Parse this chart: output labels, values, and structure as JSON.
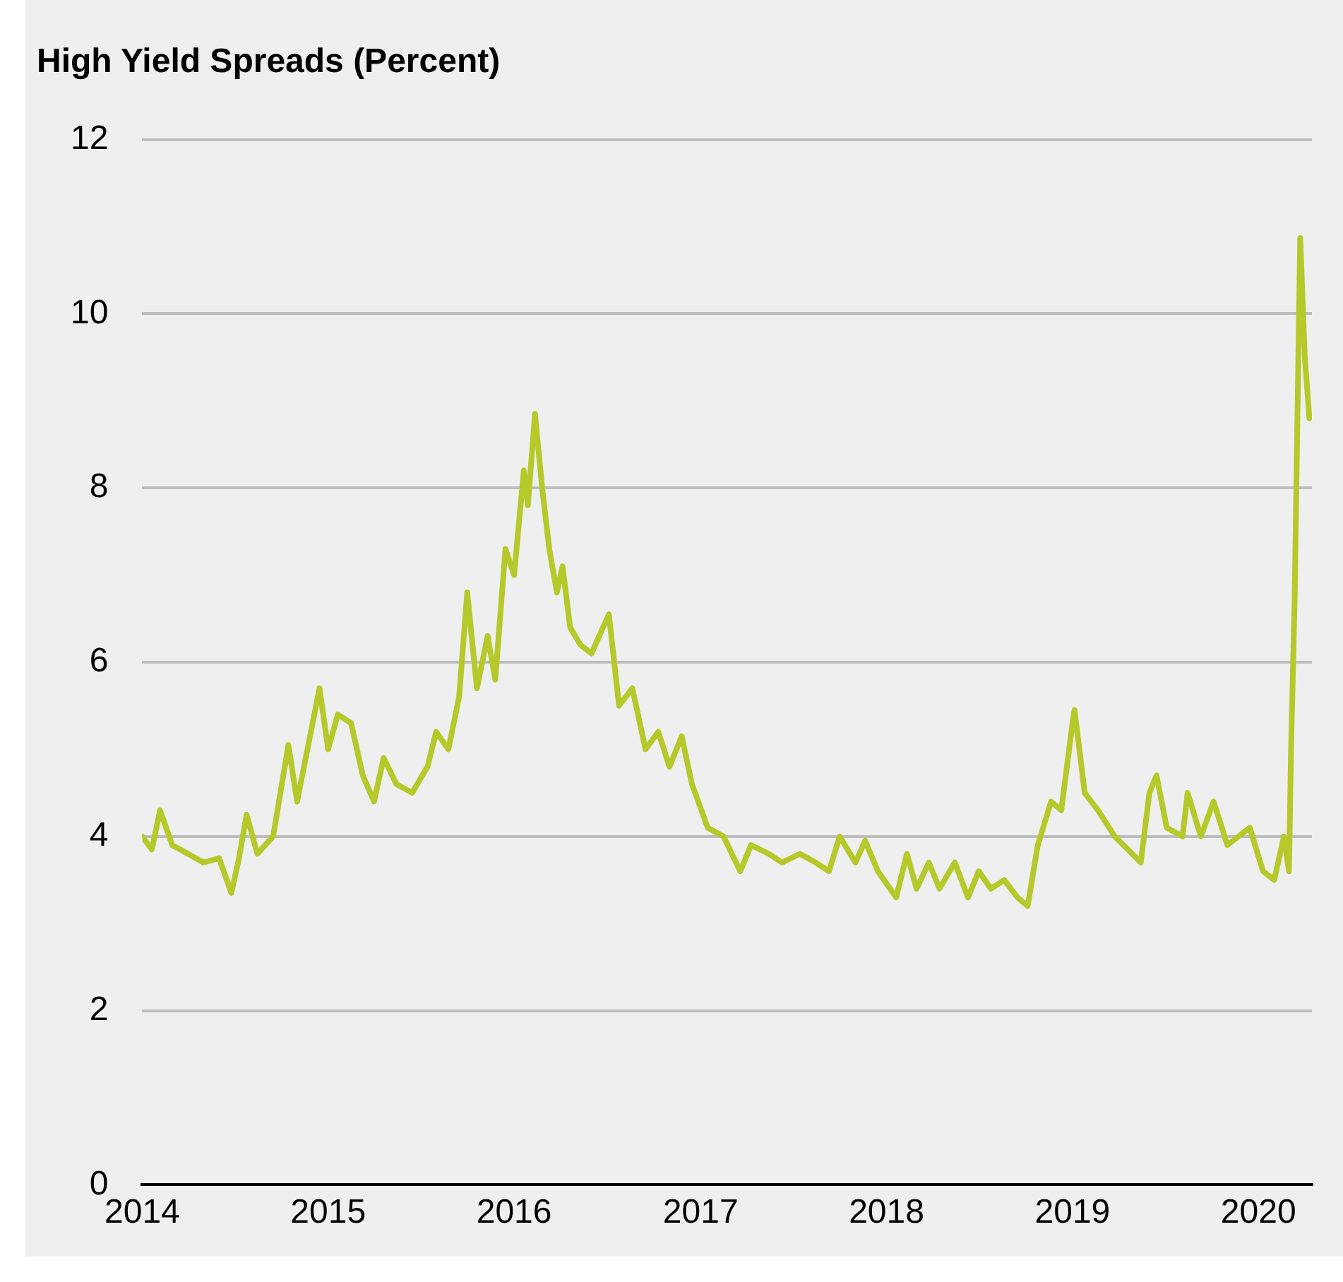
{
  "chart_data": {
    "type": "line",
    "title": "High Yield Spreads (Percent)",
    "x": [
      "2014-01-01",
      "2014-01-20",
      "2014-02-05",
      "2014-03-01",
      "2014-04-01",
      "2014-05-01",
      "2014-06-01",
      "2014-06-25",
      "2014-07-10",
      "2014-07-25",
      "2014-08-15",
      "2014-09-15",
      "2014-10-15",
      "2014-11-01",
      "2014-12-15",
      "2015-01-01",
      "2015-01-20",
      "2015-02-15",
      "2015-03-10",
      "2015-04-01",
      "2015-04-20",
      "2015-05-15",
      "2015-06-15",
      "2015-07-15",
      "2015-08-01",
      "2015-08-25",
      "2015-09-15",
      "2015-10-01",
      "2015-10-20",
      "2015-11-10",
      "2015-11-25",
      "2015-12-15",
      "2016-01-01",
      "2016-01-20",
      "2016-01-28",
      "2016-02-11",
      "2016-02-25",
      "2016-03-10",
      "2016-03-25",
      "2016-04-05",
      "2016-04-20",
      "2016-05-10",
      "2016-06-01",
      "2016-07-05",
      "2016-07-25",
      "2016-08-20",
      "2016-09-15",
      "2016-10-10",
      "2016-11-01",
      "2016-11-25",
      "2016-12-15",
      "2017-01-15",
      "2017-02-15",
      "2017-03-20",
      "2017-04-10",
      "2017-05-15",
      "2017-06-10",
      "2017-07-15",
      "2017-08-15",
      "2017-09-10",
      "2017-10-01",
      "2017-11-01",
      "2017-11-20",
      "2017-12-15",
      "2018-01-20",
      "2018-02-10",
      "2018-03-01",
      "2018-03-25",
      "2018-04-15",
      "2018-05-15",
      "2018-06-10",
      "2018-07-01",
      "2018-07-25",
      "2018-08-20",
      "2018-09-15",
      "2018-10-05",
      "2018-10-25",
      "2018-11-20",
      "2018-12-10",
      "2019-01-01",
      "2019-01-05",
      "2019-01-25",
      "2019-02-20",
      "2019-03-25",
      "2019-04-20",
      "2019-05-15",
      "2019-06-01",
      "2019-06-15",
      "2019-07-05",
      "2019-08-05",
      "2019-08-15",
      "2019-09-10",
      "2019-10-05",
      "2019-11-01",
      "2019-12-15",
      "2020-01-10",
      "2020-02-01",
      "2020-02-20",
      "2020-03-01",
      "2020-03-05",
      "2020-03-12",
      "2020-03-18",
      "2020-03-23",
      "2020-04-01",
      "2020-04-10"
    ],
    "series": [
      {
        "color": "#b5c92a",
        "values": [
          4.0,
          3.85,
          4.3,
          3.9,
          3.8,
          3.7,
          3.75,
          3.35,
          3.75,
          4.25,
          3.8,
          4.0,
          5.05,
          4.4,
          5.7,
          5.0,
          5.4,
          5.3,
          4.7,
          4.4,
          4.9,
          4.6,
          4.5,
          4.8,
          5.2,
          5.0,
          5.6,
          6.8,
          5.7,
          6.3,
          5.8,
          7.3,
          7.0,
          8.2,
          7.8,
          8.85,
          8.0,
          7.3,
          6.8,
          7.1,
          6.4,
          6.2,
          6.1,
          6.55,
          5.5,
          5.7,
          5.0,
          5.2,
          4.8,
          5.15,
          4.6,
          4.1,
          4.0,
          3.6,
          3.9,
          3.8,
          3.7,
          3.8,
          3.7,
          3.6,
          4.0,
          3.7,
          3.95,
          3.6,
          3.3,
          3.8,
          3.4,
          3.7,
          3.4,
          3.7,
          3.3,
          3.6,
          3.4,
          3.5,
          3.3,
          3.2,
          3.9,
          4.4,
          4.3,
          5.3,
          5.45,
          4.5,
          4.3,
          4.0,
          3.85,
          3.7,
          4.5,
          4.7,
          4.1,
          4.0,
          4.5,
          4.0,
          4.4,
          3.9,
          4.1,
          3.6,
          3.5,
          4.0,
          3.6,
          5.0,
          6.7,
          9.0,
          10.87,
          9.5,
          8.8
        ]
      }
    ],
    "xlim": [
      "2014-01-01",
      "2020-04-15"
    ],
    "xticks": [
      "2014",
      "2015",
      "2016",
      "2017",
      "2018",
      "2019",
      "2020"
    ],
    "ylim": [
      0,
      12
    ],
    "yticks": [
      0,
      2,
      4,
      6,
      8,
      10,
      12
    ],
    "grid": "y",
    "marker": "none",
    "line_style": "solid"
  }
}
